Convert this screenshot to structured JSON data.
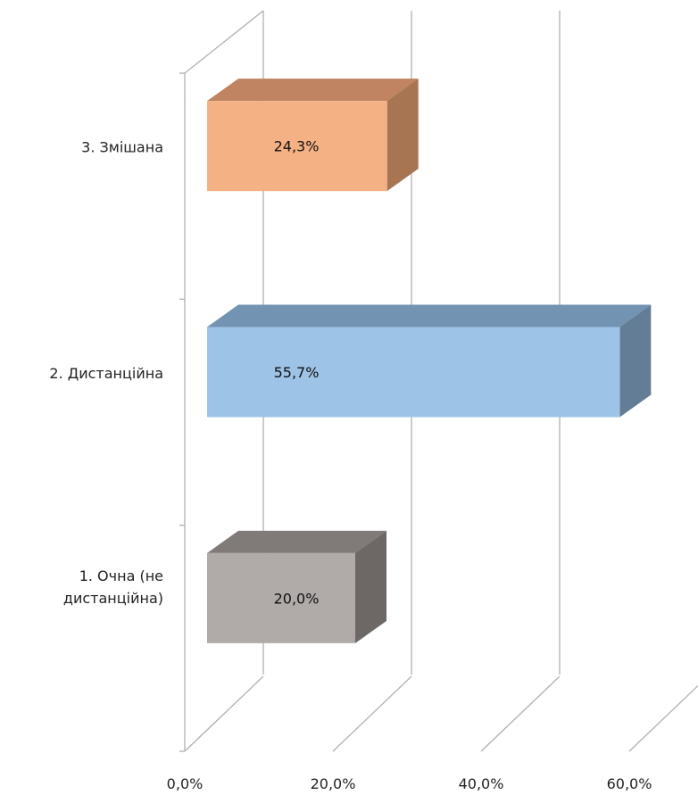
{
  "chart_data": {
    "type": "bar",
    "orientation": "horizontal",
    "style": "3d",
    "categories": [
      "1. Очна (не дистанційна)",
      "2. Дистанційна",
      "3. Змішана"
    ],
    "category_label_lines": [
      [
        "1. Очна (не",
        "дистанційна)"
      ],
      [
        "2. Дистанційна"
      ],
      [
        "3. Змішана"
      ]
    ],
    "values": [
      20.0,
      55.7,
      24.3
    ],
    "data_labels": [
      "20,0%",
      "55,7%",
      "24,3%"
    ],
    "x_ticks": [
      0,
      20,
      40,
      60
    ],
    "x_tick_labels": [
      "0,0%",
      "20,0%",
      "40,0%",
      "60,0%"
    ],
    "xlim": [
      0,
      60
    ],
    "grid": true,
    "legend": "none",
    "colors": {
      "bars": [
        "#b0aaa8",
        "#9dc3e6",
        "#f4b183"
      ],
      "bar_tops": [
        "#807a78",
        "#7393b3",
        "#c08462"
      ],
      "bar_sides": [
        "#6d6766",
        "#637d97",
        "#a87552"
      ],
      "grid": "#b0b0b0"
    }
  }
}
